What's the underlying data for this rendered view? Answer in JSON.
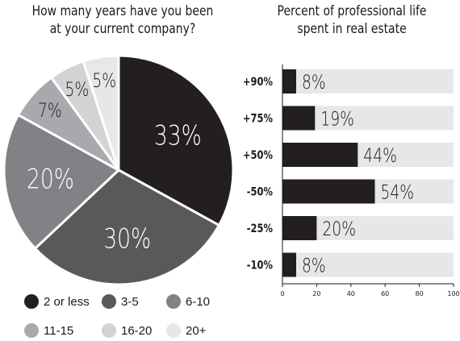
{
  "chart_data": [
    {
      "type": "pie",
      "title": "How many years have you been at your current company?",
      "title_lines": [
        "How many years have you been",
        "at your current company?"
      ],
      "categories": [
        "2 or less",
        "3-5",
        "6-10",
        "11-15",
        "16-20",
        "20+"
      ],
      "values": [
        33,
        30,
        20,
        7,
        5,
        5
      ],
      "labels": [
        "33%",
        "30%",
        "20%",
        "7%",
        "5%",
        "5%"
      ],
      "colors": [
        "#231f20",
        "#58595b",
        "#808285",
        "#a7a9ac",
        "#d1d3d4",
        "#e6e7e8"
      ],
      "legend_position": "bottom"
    },
    {
      "type": "bar",
      "orientation": "horizontal",
      "title": "Percent of professional life spent in real estate",
      "title_lines": [
        "Percent of professional life",
        "spent in real estate"
      ],
      "categories": [
        "+90%",
        "+75%",
        "+50%",
        "-50%",
        "-25%",
        "-10%"
      ],
      "values": [
        8,
        19,
        44,
        54,
        20,
        8
      ],
      "labels": [
        "8%",
        "19%",
        "44%",
        "54%",
        "20%",
        "8%"
      ],
      "xlim": [
        0,
        100
      ],
      "xticks": [
        0,
        20,
        40,
        60,
        80,
        100
      ],
      "bar_color": "#231f20",
      "track_color": "#e6e7e8",
      "grid": false
    }
  ]
}
